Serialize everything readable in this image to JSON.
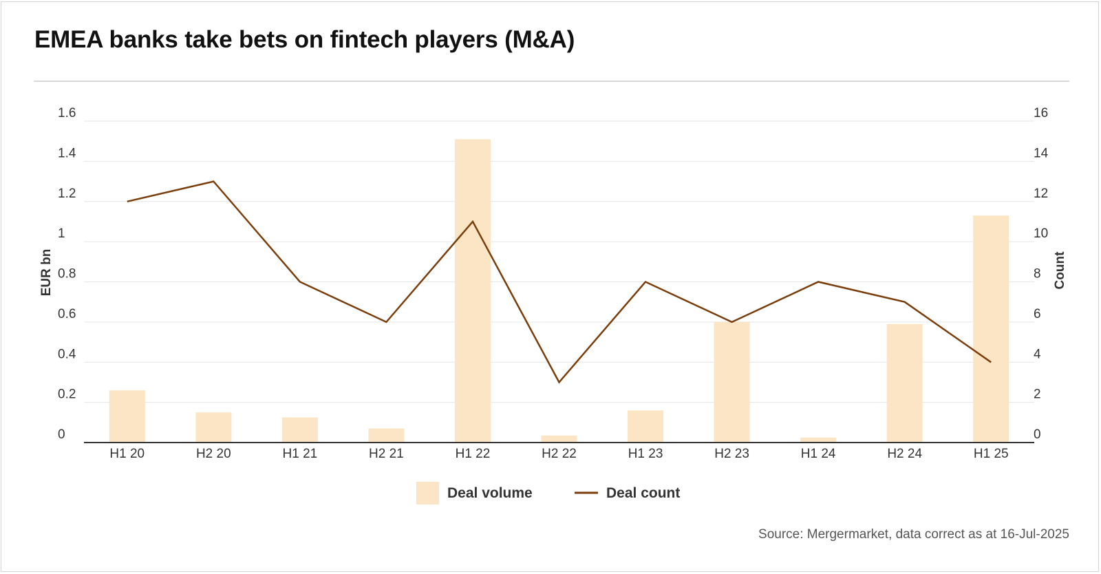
{
  "title": "EMEA banks take bets on fintech players (M&A)",
  "source": "Source: Mergermarket, data correct as at 16-Jul-2025",
  "chart_data": {
    "type": "bar",
    "categories": [
      "H1 20",
      "H2 20",
      "H1 21",
      "H2 21",
      "H1 22",
      "H2 22",
      "H1 23",
      "H2 23",
      "H1 24",
      "H2 24",
      "H1 25"
    ],
    "series": [
      {
        "name": "Deal volume",
        "type": "bar",
        "axis": "left",
        "color": "#fce5c4",
        "values": [
          0.26,
          0.15,
          0.125,
          0.07,
          1.51,
          0.035,
          0.16,
          0.6,
          0.025,
          0.59,
          1.13
        ]
      },
      {
        "name": "Deal count",
        "type": "line",
        "axis": "right",
        "color": "#7a3e0c",
        "values": [
          12,
          13,
          8,
          6,
          11,
          3,
          8,
          6,
          8,
          7,
          4
        ]
      }
    ],
    "ylabel": "EUR bn",
    "ylabel_right": "Count",
    "ylim": [
      0,
      1.6
    ],
    "ylim_right": [
      0,
      16
    ],
    "yticks": [
      "0",
      "0.2",
      "0.4",
      "0.6",
      "0.8",
      "1",
      "1.2",
      "1.4",
      "1.6"
    ],
    "yticks_right": [
      "0",
      "2",
      "4",
      "6",
      "8",
      "10",
      "12",
      "14",
      "16"
    ],
    "grid": true,
    "legend_position": "bottom-center"
  }
}
